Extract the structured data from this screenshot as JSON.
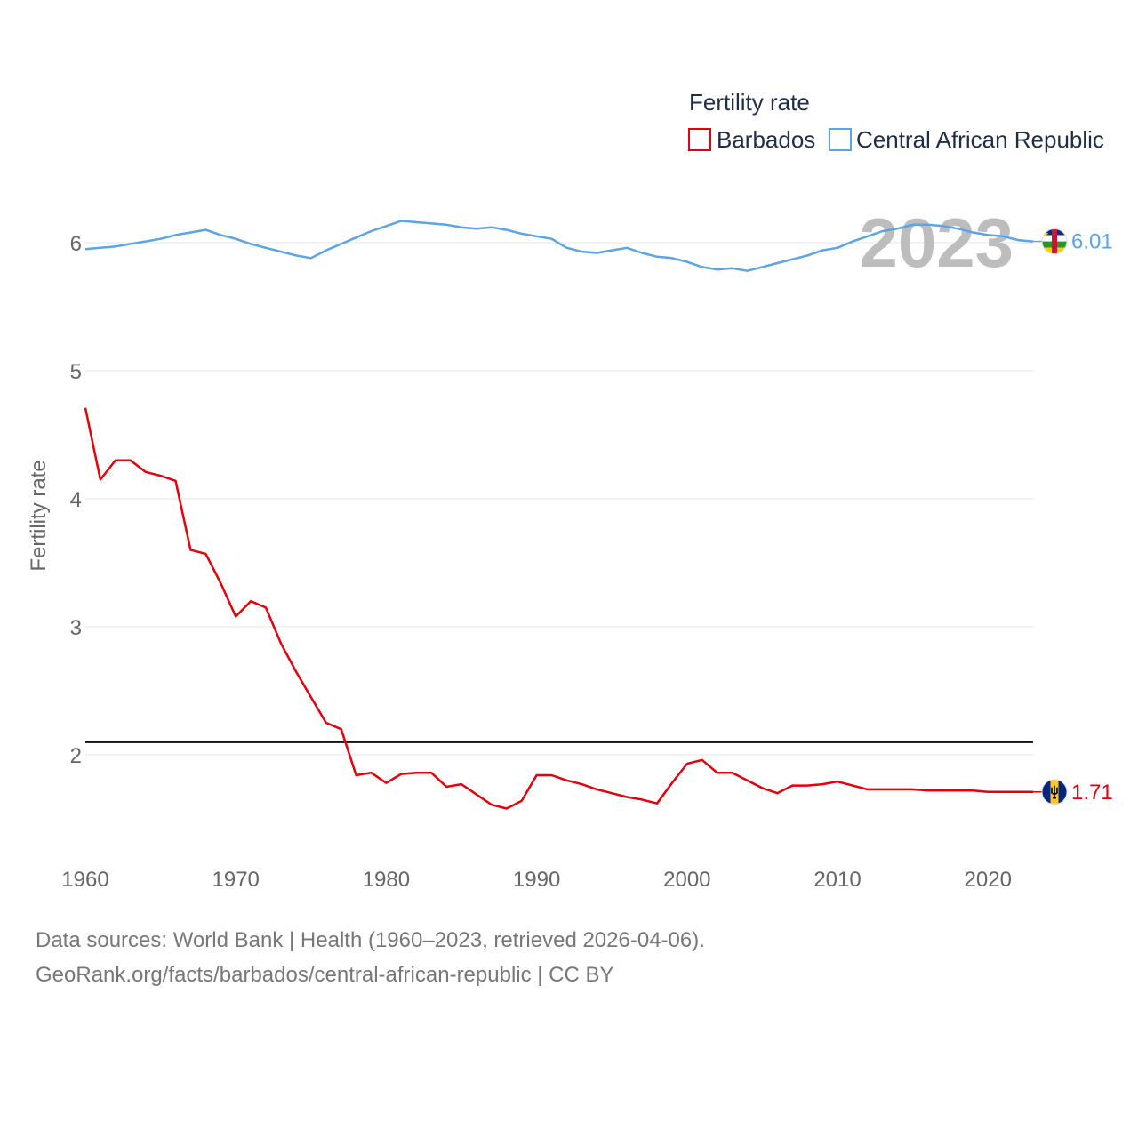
{
  "chart_data": {
    "type": "line",
    "legend_title": "Fertility rate",
    "ylabel": "Fertility rate",
    "year_label": "2023",
    "xlim": [
      1960,
      2023
    ],
    "ylim": [
      1.2,
      6.5
    ],
    "yticks": [
      2,
      3,
      4,
      5,
      6
    ],
    "xticks": [
      1960,
      1970,
      1980,
      1990,
      2000,
      2010,
      2020
    ],
    "reference_line": 2.1,
    "series": [
      {
        "name": "Barbados",
        "color": "#e8000b",
        "end_label": "1.71",
        "flag": "barbados-flag",
        "x": [
          1960,
          1961,
          1962,
          1963,
          1964,
          1965,
          1966,
          1967,
          1968,
          1969,
          1970,
          1971,
          1972,
          1973,
          1974,
          1975,
          1976,
          1977,
          1978,
          1979,
          1980,
          1981,
          1982,
          1983,
          1984,
          1985,
          1986,
          1987,
          1988,
          1989,
          1990,
          1991,
          1992,
          1993,
          1994,
          1995,
          1996,
          1997,
          1998,
          1999,
          2000,
          2001,
          2002,
          2003,
          2004,
          2005,
          2006,
          2007,
          2008,
          2009,
          2010,
          2011,
          2012,
          2013,
          2014,
          2015,
          2016,
          2017,
          2018,
          2019,
          2020,
          2021,
          2022,
          2023
        ],
        "values": [
          4.71,
          4.15,
          4.3,
          4.3,
          4.21,
          4.18,
          4.14,
          3.6,
          3.57,
          3.34,
          3.08,
          3.2,
          3.15,
          2.87,
          2.65,
          2.45,
          2.25,
          2.2,
          1.84,
          1.86,
          1.78,
          1.85,
          1.86,
          1.86,
          1.75,
          1.77,
          1.69,
          1.61,
          1.58,
          1.64,
          1.84,
          1.84,
          1.8,
          1.77,
          1.73,
          1.7,
          1.67,
          1.65,
          1.62,
          1.78,
          1.93,
          1.96,
          1.86,
          1.86,
          1.8,
          1.74,
          1.7,
          1.76,
          1.76,
          1.77,
          1.79,
          1.76,
          1.73,
          1.73,
          1.73,
          1.73,
          1.72,
          1.72,
          1.72,
          1.72,
          1.71,
          1.71,
          1.71,
          1.71
        ]
      },
      {
        "name": "Central African Republic",
        "color": "#5ba4e6",
        "end_label": "6.01",
        "flag": "central-african-republic-flag",
        "x": [
          1960,
          1961,
          1962,
          1963,
          1964,
          1965,
          1966,
          1967,
          1968,
          1969,
          1970,
          1971,
          1972,
          1973,
          1974,
          1975,
          1976,
          1977,
          1978,
          1979,
          1980,
          1981,
          1982,
          1983,
          1984,
          1985,
          1986,
          1987,
          1988,
          1989,
          1990,
          1991,
          1992,
          1993,
          1994,
          1995,
          1996,
          1997,
          1998,
          1999,
          2000,
          2001,
          2002,
          2003,
          2004,
          2005,
          2006,
          2007,
          2008,
          2009,
          2010,
          2011,
          2012,
          2013,
          2014,
          2015,
          2016,
          2017,
          2018,
          2019,
          2020,
          2021,
          2022,
          2023
        ],
        "values": [
          5.95,
          5.96,
          5.97,
          5.99,
          6.01,
          6.03,
          6.06,
          6.08,
          6.1,
          6.06,
          6.03,
          5.99,
          5.96,
          5.93,
          5.9,
          5.88,
          5.94,
          5.99,
          6.04,
          6.09,
          6.13,
          6.17,
          6.16,
          6.15,
          6.14,
          6.12,
          6.11,
          6.12,
          6.1,
          6.07,
          6.05,
          6.03,
          5.96,
          5.93,
          5.92,
          5.94,
          5.96,
          5.92,
          5.89,
          5.88,
          5.85,
          5.81,
          5.79,
          5.8,
          5.78,
          5.81,
          5.84,
          5.87,
          5.9,
          5.94,
          5.96,
          6.01,
          6.05,
          6.09,
          6.11,
          6.14,
          6.14,
          6.13,
          6.11,
          6.08,
          6.06,
          6.05,
          6.02,
          6.01
        ]
      }
    ]
  },
  "footer": {
    "line1": "Data sources: World Bank | Health (1960–2023, retrieved 2026-04-06).",
    "line2": "GeoRank.org/facts/barbados/central-african-republic | CC BY"
  }
}
